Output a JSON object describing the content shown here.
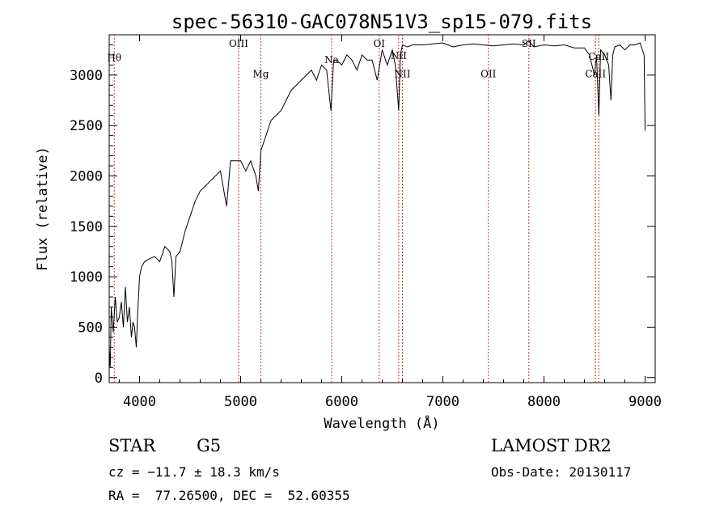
{
  "chart_data": {
    "type": "line",
    "title": "spec-56310-GAC078N51V3_sp15-079.fits",
    "xlabel": "Wavelength (Å)",
    "ylabel": "Flux (relative)",
    "xlim": [
      3700,
      9100
    ],
    "ylim": [
      -50,
      3400
    ],
    "xticks": [
      "4000",
      "5000",
      "6000",
      "7000",
      "8000",
      "9000"
    ],
    "yticks": [
      "0",
      "500",
      "1000",
      "1500",
      "2000",
      "2500",
      "3000"
    ],
    "xtick_values": [
      4000,
      5000,
      6000,
      7000,
      8000,
      9000
    ],
    "ytick_values": [
      0,
      500,
      1000,
      1500,
      2000,
      2500,
      3000
    ],
    "grid": false,
    "series": [
      {
        "x": [
          3700,
          3710,
          3720,
          3740,
          3760,
          3780,
          3800,
          3820,
          3840,
          3860,
          3880,
          3900,
          3920,
          3935,
          3950,
          3968,
          3980,
          4000,
          4020,
          4050,
          4100,
          4150,
          4200,
          4250,
          4300,
          4320,
          4340,
          4360,
          4400,
          4450,
          4500,
          4550,
          4600,
          4650,
          4700,
          4750,
          4800,
          4861,
          4900,
          4950,
          5000,
          5050,
          5100,
          5150,
          5175,
          5200,
          5250,
          5300,
          5350,
          5400,
          5450,
          5500,
          5550,
          5600,
          5650,
          5700,
          5750,
          5800,
          5850,
          5893,
          5920,
          5950,
          6000,
          6050,
          6100,
          6150,
          6200,
          6250,
          6300,
          6350,
          6400,
          6450,
          6500,
          6530,
          6563,
          6580,
          6600,
          6650,
          6700,
          6800,
          6900,
          7000,
          7100,
          7200,
          7300,
          7400,
          7500,
          7600,
          7700,
          7800,
          7850,
          7900,
          8000,
          8100,
          8200,
          8300,
          8400,
          8450,
          8498,
          8520,
          8542,
          8560,
          8600,
          8640,
          8662,
          8680,
          8700,
          8750,
          8800,
          8850,
          8900,
          8950,
          8990,
          9000
        ],
        "y": [
          300,
          100,
          700,
          450,
          800,
          550,
          600,
          750,
          500,
          900,
          550,
          700,
          400,
          550,
          500,
          300,
          600,
          1000,
          1100,
          1150,
          1180,
          1200,
          1150,
          1300,
          1250,
          1150,
          800,
          1200,
          1250,
          1450,
          1600,
          1750,
          1850,
          1900,
          1950,
          2000,
          2050,
          1700,
          2150,
          2150,
          2150,
          2050,
          2150,
          2000,
          1850,
          2250,
          2400,
          2550,
          2600,
          2650,
          2750,
          2850,
          2900,
          2950,
          3000,
          3050,
          2950,
          3100,
          3050,
          2650,
          3150,
          3150,
          3100,
          3200,
          3150,
          3050,
          3200,
          3150,
          3150,
          2950,
          3250,
          3100,
          3250,
          3100,
          2650,
          3200,
          3300,
          3280,
          3300,
          3300,
          3310,
          3320,
          3280,
          3300,
          3310,
          3300,
          3290,
          3300,
          3310,
          3300,
          3340,
          3280,
          3300,
          3290,
          3300,
          3270,
          3270,
          3200,
          3000,
          3200,
          2600,
          3250,
          3200,
          3100,
          2750,
          3200,
          3280,
          3300,
          3250,
          3300,
          3300,
          3320,
          3200,
          2450
        ]
      }
    ],
    "lines": [
      {
        "x": 3750,
        "label": "Hθ",
        "label_y": 3140
      },
      {
        "x": 4980,
        "label": "OIII",
        "label_y": 3280
      },
      {
        "x": 5200,
        "label": "Mg",
        "label_y": 2980
      },
      {
        "x": 5900,
        "label": "Na",
        "label_y": 3120
      },
      {
        "x": 6370,
        "label": "OI",
        "label_y": 3280
      },
      {
        "x": 6563,
        "label": "NII",
        "label_y": 3160
      },
      {
        "x": 6600,
        "label": "NII",
        "label_y": 2980
      },
      {
        "x": 7450,
        "label": "OII",
        "label_y": 2980
      },
      {
        "x": 7850,
        "label": "SII",
        "label_y": 3280
      },
      {
        "x": 8510,
        "label": "CaII",
        "label_y": 2980
      },
      {
        "x": 8542,
        "label": "CaII",
        "label_y": 3150
      }
    ]
  },
  "info": {
    "class": "STAR",
    "subclass": "G5",
    "survey": "LAMOST DR2",
    "cz": "cz = −11.7 ± 18.3 km/s",
    "obs_date": "Obs-Date: 20130117",
    "radec": "RA =  77.26500, DEC =  52.60355"
  }
}
